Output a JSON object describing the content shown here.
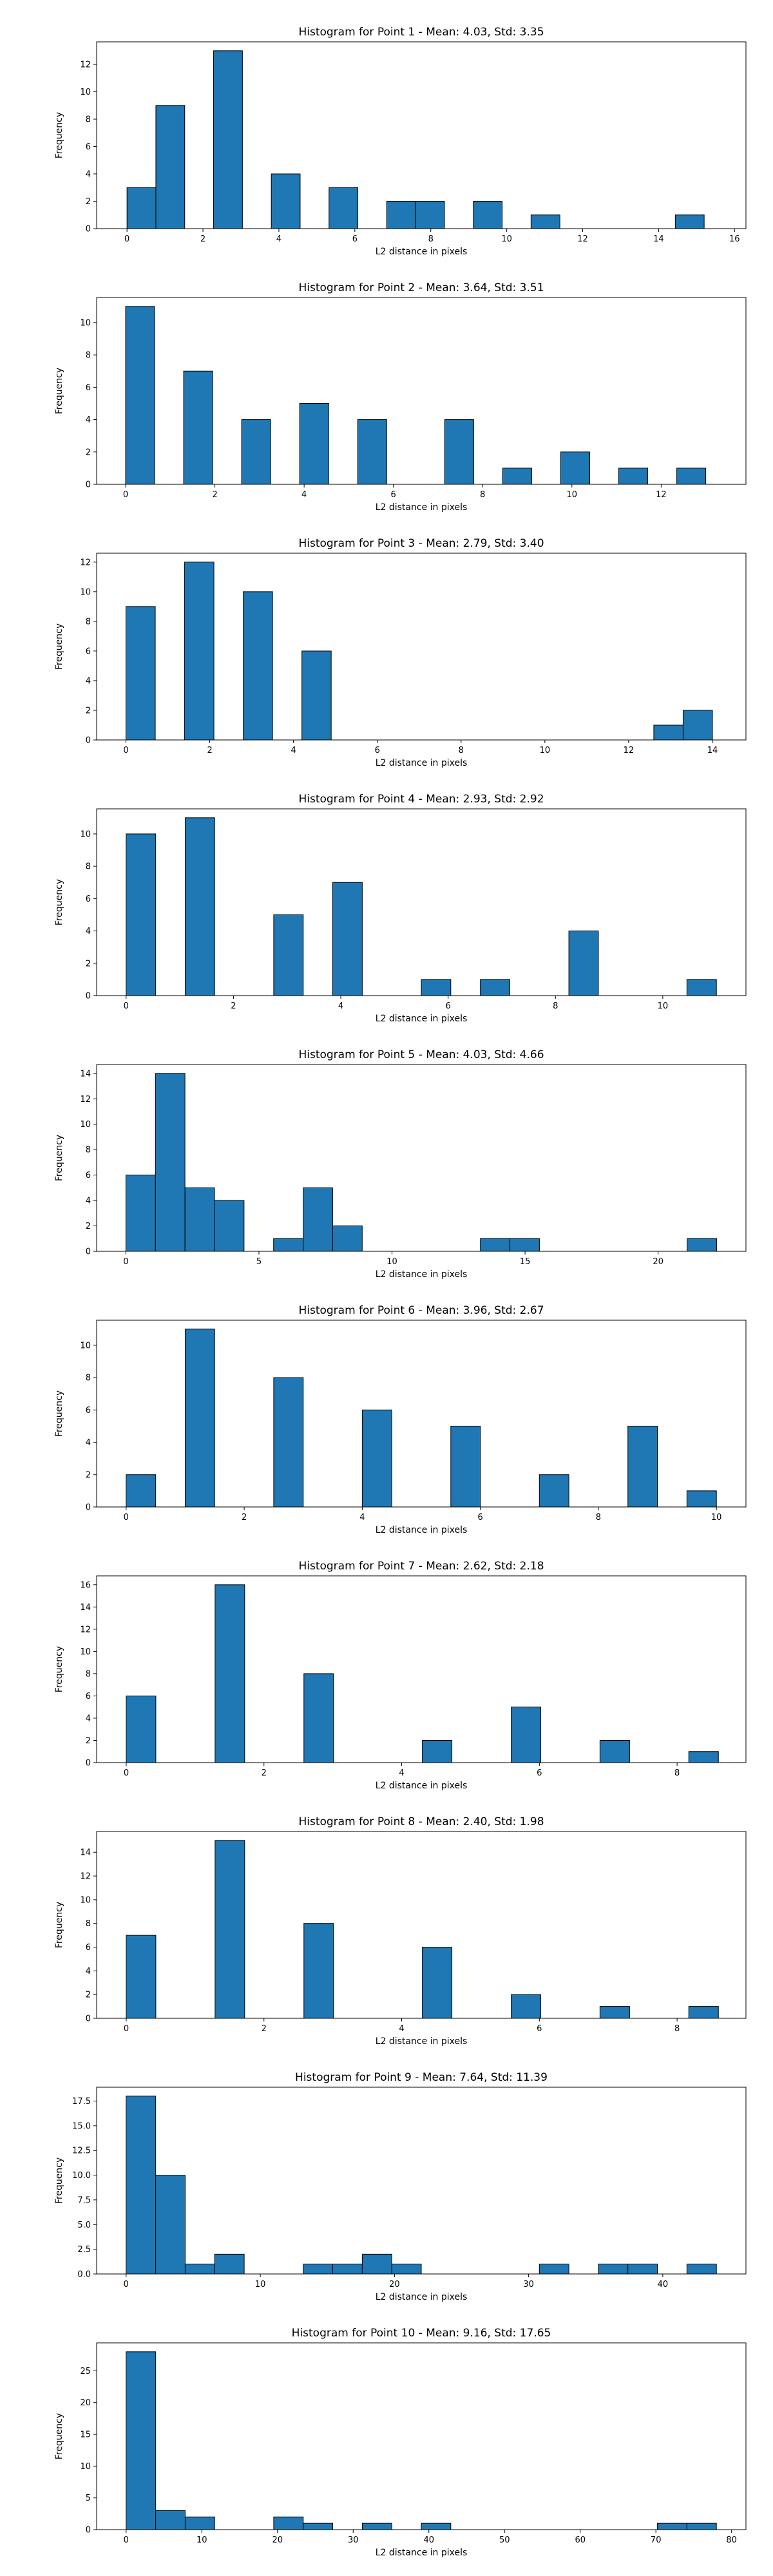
{
  "chart_data": [
    {
      "type": "bar",
      "title": "Histogram for Point 1 - Mean: 4.03, Std: 3.35",
      "xlabel": "L2 distance in pixels",
      "ylabel": "Frequency",
      "xlim": [
        -0.8,
        16.3
      ],
      "ylim": [
        0,
        13.65
      ],
      "xticks": [
        0,
        2,
        4,
        6,
        8,
        10,
        12,
        14,
        16
      ],
      "yticks": [
        0,
        2,
        4,
        6,
        8,
        10,
        12
      ],
      "bins": [
        {
          "x0": 0.0,
          "x1": 0.76,
          "count": 3
        },
        {
          "x0": 0.76,
          "x1": 1.52,
          "count": 9
        },
        {
          "x0": 2.28,
          "x1": 3.04,
          "count": 13
        },
        {
          "x0": 3.8,
          "x1": 4.56,
          "count": 4
        },
        {
          "x0": 5.32,
          "x1": 6.08,
          "count": 3
        },
        {
          "x0": 6.84,
          "x1": 7.6,
          "count": 2
        },
        {
          "x0": 7.6,
          "x1": 8.36,
          "count": 2
        },
        {
          "x0": 9.12,
          "x1": 9.88,
          "count": 2
        },
        {
          "x0": 10.64,
          "x1": 11.4,
          "count": 1
        },
        {
          "x0": 14.44,
          "x1": 15.2,
          "count": 1
        }
      ]
    },
    {
      "type": "bar",
      "title": "Histogram for Point 2 - Mean: 3.64, Std: 3.51",
      "xlabel": "L2 distance in pixels",
      "ylabel": "Frequency",
      "xlim": [
        -0.65,
        13.9
      ],
      "ylim": [
        0,
        11.55
      ],
      "xticks": [
        0,
        2,
        4,
        6,
        8,
        10,
        12
      ],
      "yticks": [
        0,
        2,
        4,
        6,
        8,
        10
      ],
      "bins": [
        {
          "x0": 0.0,
          "x1": 0.65,
          "count": 11
        },
        {
          "x0": 1.3,
          "x1": 1.95,
          "count": 7
        },
        {
          "x0": 2.6,
          "x1": 3.25,
          "count": 4
        },
        {
          "x0": 3.9,
          "x1": 4.55,
          "count": 5
        },
        {
          "x0": 5.2,
          "x1": 5.85,
          "count": 4
        },
        {
          "x0": 7.15,
          "x1": 7.8,
          "count": 4
        },
        {
          "x0": 8.45,
          "x1": 9.1,
          "count": 1
        },
        {
          "x0": 9.75,
          "x1": 10.4,
          "count": 2
        },
        {
          "x0": 11.05,
          "x1": 11.7,
          "count": 1
        },
        {
          "x0": 12.35,
          "x1": 13.0,
          "count": 1
        }
      ]
    },
    {
      "type": "bar",
      "title": "Histogram for Point 3 - Mean: 2.79, Std: 3.40",
      "xlabel": "L2 distance in pixels",
      "ylabel": "Frequency",
      "xlim": [
        -0.7,
        14.8
      ],
      "ylim": [
        0,
        12.6
      ],
      "xticks": [
        0,
        2,
        4,
        6,
        8,
        10,
        12,
        14
      ],
      "yticks": [
        0,
        2,
        4,
        6,
        8,
        10,
        12
      ],
      "bins": [
        {
          "x0": 0.0,
          "x1": 0.7,
          "count": 9
        },
        {
          "x0": 1.4,
          "x1": 2.1,
          "count": 12
        },
        {
          "x0": 2.8,
          "x1": 3.5,
          "count": 10
        },
        {
          "x0": 4.2,
          "x1": 4.9,
          "count": 6
        },
        {
          "x0": 12.6,
          "x1": 13.3,
          "count": 1
        },
        {
          "x0": 13.3,
          "x1": 14.0,
          "count": 2
        }
      ]
    },
    {
      "type": "bar",
      "title": "Histogram for Point 4 - Mean: 2.93, Std: 2.92",
      "xlabel": "L2 distance in pixels",
      "ylabel": "Frequency",
      "xlim": [
        -0.55,
        11.55
      ],
      "ylim": [
        0,
        11.55
      ],
      "xticks": [
        0,
        2,
        4,
        6,
        8,
        10
      ],
      "yticks": [
        0,
        2,
        4,
        6,
        8,
        10
      ],
      "bins": [
        {
          "x0": 0.0,
          "x1": 0.55,
          "count": 10
        },
        {
          "x0": 1.1,
          "x1": 1.65,
          "count": 11
        },
        {
          "x0": 2.75,
          "x1": 3.3,
          "count": 5
        },
        {
          "x0": 3.85,
          "x1": 4.4,
          "count": 7
        },
        {
          "x0": 5.5,
          "x1": 6.05,
          "count": 1
        },
        {
          "x0": 6.6,
          "x1": 7.15,
          "count": 1
        },
        {
          "x0": 8.25,
          "x1": 8.8,
          "count": 4
        },
        {
          "x0": 10.45,
          "x1": 11.0,
          "count": 1
        }
      ]
    },
    {
      "type": "bar",
      "title": "Histogram for Point 5 - Mean: 4.03, Std: 4.66",
      "xlabel": "L2 distance in pixels",
      "ylabel": "Frequency",
      "xlim": [
        -1.1,
        23.3
      ],
      "ylim": [
        0,
        14.7
      ],
      "xticks": [
        0,
        5,
        10,
        15,
        20
      ],
      "yticks": [
        0,
        2,
        4,
        6,
        8,
        10,
        12,
        14
      ],
      "bins": [
        {
          "x0": 0.0,
          "x1": 1.11,
          "count": 6
        },
        {
          "x0": 1.11,
          "x1": 2.22,
          "count": 14
        },
        {
          "x0": 2.22,
          "x1": 3.33,
          "count": 5
        },
        {
          "x0": 3.33,
          "x1": 4.44,
          "count": 4
        },
        {
          "x0": 5.55,
          "x1": 6.66,
          "count": 1
        },
        {
          "x0": 6.66,
          "x1": 7.77,
          "count": 5
        },
        {
          "x0": 7.77,
          "x1": 8.88,
          "count": 2
        },
        {
          "x0": 13.32,
          "x1": 14.43,
          "count": 1
        },
        {
          "x0": 14.43,
          "x1": 15.54,
          "count": 1
        },
        {
          "x0": 21.09,
          "x1": 22.2,
          "count": 1
        }
      ]
    },
    {
      "type": "bar",
      "title": "Histogram for Point 6 - Mean: 3.96, Std: 2.67",
      "xlabel": "L2 distance in pixels",
      "ylabel": "Frequency",
      "xlim": [
        -0.5,
        10.5
      ],
      "ylim": [
        0,
        11.55
      ],
      "xticks": [
        0,
        2,
        4,
        6,
        8,
        10
      ],
      "yticks": [
        0,
        2,
        4,
        6,
        8,
        10
      ],
      "bins": [
        {
          "x0": 0.0,
          "x1": 0.5,
          "count": 2
        },
        {
          "x0": 1.0,
          "x1": 1.5,
          "count": 11
        },
        {
          "x0": 2.5,
          "x1": 3.0,
          "count": 8
        },
        {
          "x0": 4.0,
          "x1": 4.5,
          "count": 6
        },
        {
          "x0": 5.5,
          "x1": 6.0,
          "count": 5
        },
        {
          "x0": 7.0,
          "x1": 7.5,
          "count": 2
        },
        {
          "x0": 8.5,
          "x1": 9.0,
          "count": 5
        },
        {
          "x0": 9.5,
          "x1": 10.0,
          "count": 1
        }
      ]
    },
    {
      "type": "bar",
      "title": "Histogram for Point 7 - Mean: 2.62, Std: 2.18",
      "xlabel": "L2 distance in pixels",
      "ylabel": "Frequency",
      "xlim": [
        -0.43,
        9.0
      ],
      "ylim": [
        0,
        16.8
      ],
      "xticks": [
        0,
        2,
        4,
        6,
        8
      ],
      "yticks": [
        0,
        2,
        4,
        6,
        8,
        10,
        12,
        14,
        16
      ],
      "bins": [
        {
          "x0": 0.0,
          "x1": 0.43,
          "count": 6
        },
        {
          "x0": 1.29,
          "x1": 1.72,
          "count": 16
        },
        {
          "x0": 2.58,
          "x1": 3.01,
          "count": 8
        },
        {
          "x0": 4.3,
          "x1": 4.73,
          "count": 2
        },
        {
          "x0": 5.59,
          "x1": 6.02,
          "count": 5
        },
        {
          "x0": 6.88,
          "x1": 7.31,
          "count": 2
        },
        {
          "x0": 8.17,
          "x1": 8.6,
          "count": 1
        }
      ]
    },
    {
      "type": "bar",
      "title": "Histogram for Point 8 - Mean: 2.40, Std: 1.98",
      "xlabel": "L2 distance in pixels",
      "ylabel": "Frequency",
      "xlim": [
        -0.43,
        9.0
      ],
      "ylim": [
        0,
        15.75
      ],
      "xticks": [
        0,
        2,
        4,
        6,
        8
      ],
      "yticks": [
        0,
        2,
        4,
        6,
        8,
        10,
        12,
        14
      ],
      "bins": [
        {
          "x0": 0.0,
          "x1": 0.43,
          "count": 7
        },
        {
          "x0": 1.29,
          "x1": 1.72,
          "count": 15
        },
        {
          "x0": 2.58,
          "x1": 3.01,
          "count": 8
        },
        {
          "x0": 4.3,
          "x1": 4.73,
          "count": 6
        },
        {
          "x0": 5.59,
          "x1": 6.02,
          "count": 2
        },
        {
          "x0": 6.88,
          "x1": 7.31,
          "count": 1
        },
        {
          "x0": 8.17,
          "x1": 8.6,
          "count": 1
        }
      ]
    },
    {
      "type": "bar",
      "title": "Histogram for Point 9 - Mean: 7.64, Std: 11.39",
      "xlabel": "L2 distance in pixels",
      "ylabel": "Frequency",
      "xlim": [
        -2.2,
        46.2
      ],
      "ylim": [
        0,
        18.9
      ],
      "xticks": [
        0,
        10,
        20,
        30,
        40
      ],
      "yticks": [
        0.0,
        2.5,
        5.0,
        7.5,
        10.0,
        12.5,
        15.0,
        17.5
      ],
      "bins": [
        {
          "x0": 0.0,
          "x1": 2.2,
          "count": 18
        },
        {
          "x0": 2.2,
          "x1": 4.4,
          "count": 10
        },
        {
          "x0": 4.4,
          "x1": 6.6,
          "count": 1
        },
        {
          "x0": 6.6,
          "x1": 8.8,
          "count": 2
        },
        {
          "x0": 13.2,
          "x1": 15.4,
          "count": 1
        },
        {
          "x0": 15.4,
          "x1": 17.6,
          "count": 1
        },
        {
          "x0": 17.6,
          "x1": 19.8,
          "count": 2
        },
        {
          "x0": 19.8,
          "x1": 22.0,
          "count": 1
        },
        {
          "x0": 30.8,
          "x1": 33.0,
          "count": 1
        },
        {
          "x0": 35.2,
          "x1": 37.4,
          "count": 1
        },
        {
          "x0": 37.4,
          "x1": 39.6,
          "count": 1
        },
        {
          "x0": 41.8,
          "x1": 44.0,
          "count": 1
        }
      ]
    },
    {
      "type": "bar",
      "title": "Histogram for Point 10 - Mean: 9.16, Std: 17.65",
      "xlabel": "L2 distance in pixels",
      "ylabel": "Frequency",
      "xlim": [
        -3.9,
        81.9
      ],
      "ylim": [
        0,
        29.4
      ],
      "xticks": [
        0,
        10,
        20,
        30,
        40,
        50,
        60,
        70,
        80
      ],
      "yticks": [
        0,
        5,
        10,
        15,
        20,
        25
      ],
      "bins": [
        {
          "x0": 0.0,
          "x1": 3.9,
          "count": 28
        },
        {
          "x0": 3.9,
          "x1": 7.8,
          "count": 3
        },
        {
          "x0": 7.8,
          "x1": 11.7,
          "count": 2
        },
        {
          "x0": 19.5,
          "x1": 23.4,
          "count": 2
        },
        {
          "x0": 23.4,
          "x1": 27.3,
          "count": 1
        },
        {
          "x0": 31.2,
          "x1": 35.1,
          "count": 1
        },
        {
          "x0": 39.0,
          "x1": 42.9,
          "count": 1
        },
        {
          "x0": 70.2,
          "x1": 74.1,
          "count": 1
        },
        {
          "x0": 74.1,
          "x1": 78.0,
          "count": 1
        }
      ]
    }
  ],
  "colors": {
    "bar_fill": "#1f77b4",
    "bar_edge": "#000000",
    "axes": "#000000",
    "background": "#ffffff"
  }
}
